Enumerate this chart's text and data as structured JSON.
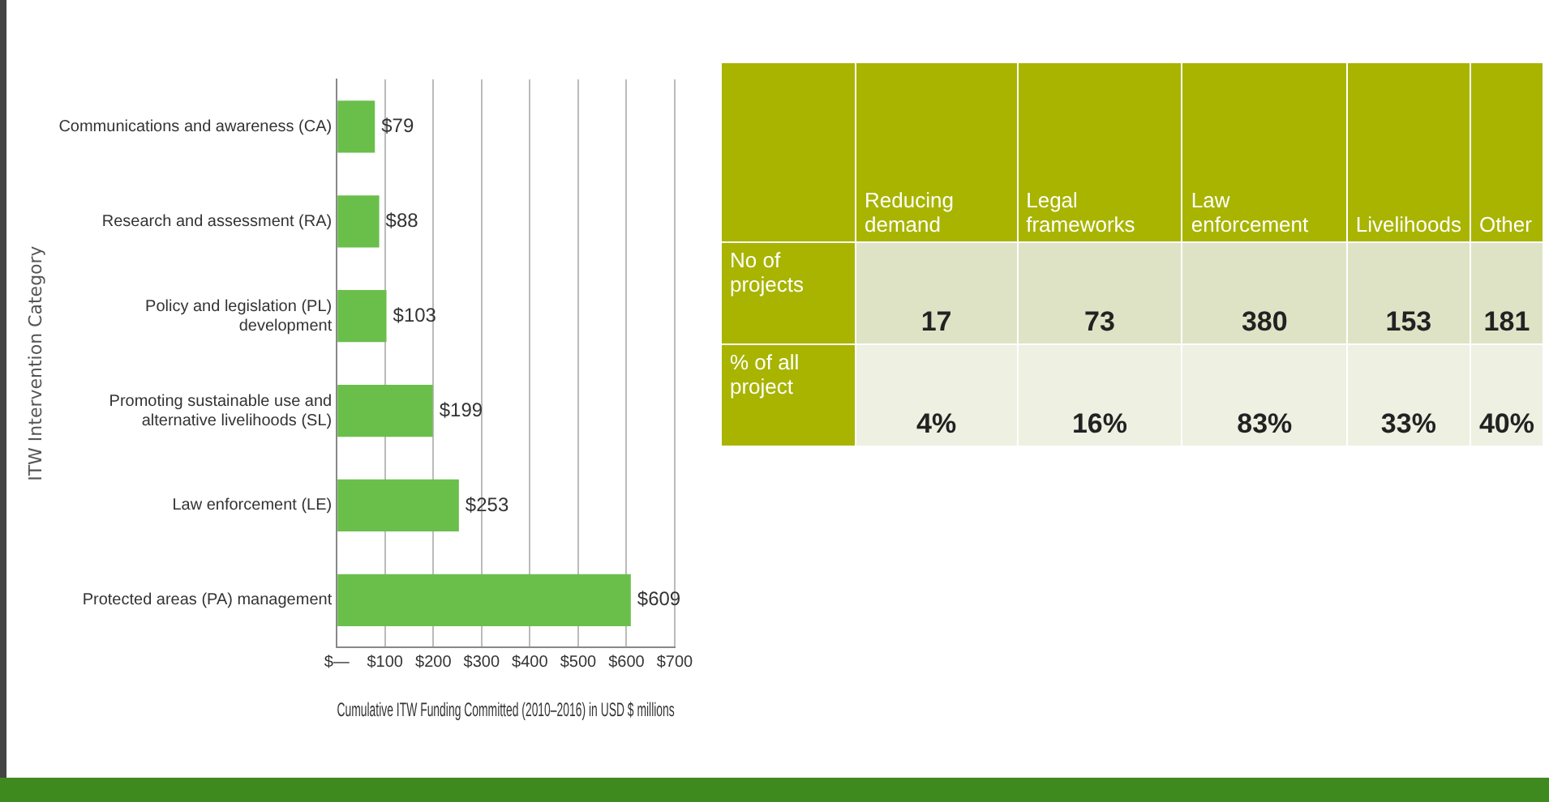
{
  "chart_data": [
    {
      "type": "bar",
      "orientation": "horizontal",
      "ylabel": "ITW Intervention Category",
      "xlabel": "Cumulative ITW Funding Committed (2010–2016) in USD $ millions",
      "categories": [
        "Communications and awareness (CA)",
        "Research and assessment (RA)",
        "Policy and legislation (PL) development",
        "Promoting sustainable use and alternative livelihoods (SL)",
        "Law enforcement (LE)",
        "Protected areas (PA) management"
      ],
      "values": [
        79,
        88,
        103,
        199,
        253,
        609
      ],
      "value_labels": [
        "$79",
        "$88",
        "$103",
        "$199",
        "$253",
        "$609"
      ],
      "color": "#6abf4b",
      "xlim": [
        0,
        700
      ],
      "xticks": [
        {
          "value": 0,
          "label": "$—"
        },
        {
          "value": 100,
          "label": "$100"
        },
        {
          "value": 200,
          "label": "$200"
        },
        {
          "value": 300,
          "label": "$300"
        },
        {
          "value": 400,
          "label": "$400"
        },
        {
          "value": 500,
          "label": "$500"
        },
        {
          "value": 600,
          "label": "$600"
        },
        {
          "value": 700,
          "label": "$700"
        }
      ],
      "grid": "x",
      "legend": false
    },
    {
      "type": "other",
      "categories": [
        "Reducing demand",
        "Legal frameworks",
        "Law enforcement",
        "Livelihoods",
        "Other"
      ],
      "y_categories": [
        "No of projects",
        "% of all project"
      ],
      "cell_labels": [
        [
          "17",
          "73",
          "380",
          "153",
          "181"
        ],
        [
          "4%",
          "16%",
          "83%",
          "33%",
          "40%"
        ]
      ]
    }
  ]
}
